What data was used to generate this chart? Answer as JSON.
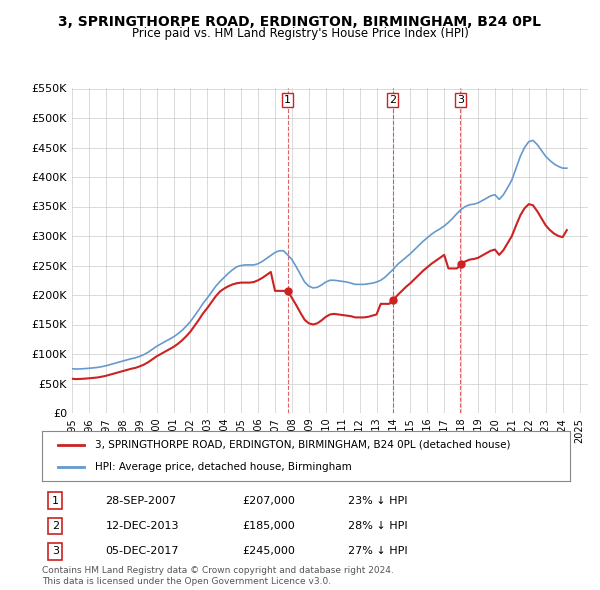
{
  "title": "3, SPRINGTHORPE ROAD, ERDINGTON, BIRMINGHAM, B24 0PL",
  "subtitle": "Price paid vs. HM Land Registry's House Price Index (HPI)",
  "ylabel": "",
  "background_color": "#ffffff",
  "plot_bg_color": "#ffffff",
  "grid_color": "#cccccc",
  "line_color_hpi": "#6699cc",
  "line_color_property": "#cc2222",
  "ylim": [
    0,
    550000
  ],
  "yticks": [
    0,
    50000,
    100000,
    150000,
    200000,
    250000,
    300000,
    350000,
    400000,
    450000,
    500000,
    550000
  ],
  "ytick_labels": [
    "£0",
    "£50K",
    "£100K",
    "£150K",
    "£200K",
    "£250K",
    "£300K",
    "£350K",
    "£400K",
    "£450K",
    "£500K",
    "£550K"
  ],
  "transactions": [
    {
      "num": 1,
      "date_label": "28-SEP-2007",
      "year": 2007.75,
      "price": 207000,
      "pct": "23%",
      "dir": "↓"
    },
    {
      "num": 2,
      "date_label": "12-DEC-2013",
      "year": 2013.95,
      "price": 185000,
      "pct": "28%",
      "dir": "↓"
    },
    {
      "num": 3,
      "date_label": "05-DEC-2017",
      "year": 2017.95,
      "price": 245000,
      "pct": "27%",
      "dir": "↓"
    }
  ],
  "legend_property": "3, SPRINGTHORPE ROAD, ERDINGTON, BIRMINGHAM, B24 0PL (detached house)",
  "legend_hpi": "HPI: Average price, detached house, Birmingham",
  "footnote": "Contains HM Land Registry data © Crown copyright and database right 2024.\nThis data is licensed under the Open Government Licence v3.0.",
  "hpi_data": {
    "years": [
      1995.0,
      1995.25,
      1995.5,
      1995.75,
      1996.0,
      1996.25,
      1996.5,
      1996.75,
      1997.0,
      1997.25,
      1997.5,
      1997.75,
      1998.0,
      1998.25,
      1998.5,
      1998.75,
      1999.0,
      1999.25,
      1999.5,
      1999.75,
      2000.0,
      2000.25,
      2000.5,
      2000.75,
      2001.0,
      2001.25,
      2001.5,
      2001.75,
      2002.0,
      2002.25,
      2002.5,
      2002.75,
      2003.0,
      2003.25,
      2003.5,
      2003.75,
      2004.0,
      2004.25,
      2004.5,
      2004.75,
      2005.0,
      2005.25,
      2005.5,
      2005.75,
      2006.0,
      2006.25,
      2006.5,
      2006.75,
      2007.0,
      2007.25,
      2007.5,
      2007.75,
      2008.0,
      2008.25,
      2008.5,
      2008.75,
      2009.0,
      2009.25,
      2009.5,
      2009.75,
      2010.0,
      2010.25,
      2010.5,
      2010.75,
      2011.0,
      2011.25,
      2011.5,
      2011.75,
      2012.0,
      2012.25,
      2012.5,
      2012.75,
      2013.0,
      2013.25,
      2013.5,
      2013.75,
      2014.0,
      2014.25,
      2014.5,
      2014.75,
      2015.0,
      2015.25,
      2015.5,
      2015.75,
      2016.0,
      2016.25,
      2016.5,
      2016.75,
      2017.0,
      2017.25,
      2017.5,
      2017.75,
      2018.0,
      2018.25,
      2018.5,
      2018.75,
      2019.0,
      2019.25,
      2019.5,
      2019.75,
      2020.0,
      2020.25,
      2020.5,
      2020.75,
      2021.0,
      2021.25,
      2021.5,
      2021.75,
      2022.0,
      2022.25,
      2022.5,
      2022.75,
      2023.0,
      2023.25,
      2023.5,
      2023.75,
      2024.0,
      2024.25
    ],
    "values": [
      75000,
      74500,
      74800,
      75200,
      75800,
      76500,
      77200,
      78500,
      80000,
      82000,
      84000,
      86000,
      88000,
      90000,
      92000,
      93500,
      96000,
      99000,
      103000,
      108000,
      113000,
      117000,
      121000,
      125000,
      129000,
      134000,
      140000,
      147000,
      155000,
      165000,
      175000,
      186000,
      195000,
      205000,
      215000,
      223000,
      230000,
      237000,
      243000,
      248000,
      250000,
      251000,
      251000,
      251000,
      253000,
      257000,
      262000,
      267000,
      272000,
      275000,
      275000,
      268000,
      260000,
      248000,
      235000,
      222000,
      215000,
      212000,
      213000,
      217000,
      222000,
      225000,
      225000,
      224000,
      223000,
      222000,
      220000,
      218000,
      218000,
      218000,
      219000,
      220000,
      222000,
      225000,
      230000,
      237000,
      244000,
      252000,
      258000,
      264000,
      270000,
      277000,
      284000,
      291000,
      297000,
      303000,
      308000,
      312000,
      317000,
      323000,
      330000,
      338000,
      345000,
      350000,
      353000,
      354000,
      356000,
      360000,
      364000,
      368000,
      370000,
      362000,
      370000,
      382000,
      395000,
      415000,
      435000,
      450000,
      460000,
      462000,
      455000,
      445000,
      435000,
      428000,
      422000,
      418000,
      415000,
      415000
    ]
  },
  "property_data": {
    "years": [
      1995.0,
      1995.25,
      1995.5,
      1995.75,
      1996.0,
      1996.25,
      1996.5,
      1996.75,
      1997.0,
      1997.25,
      1997.5,
      1997.75,
      1998.0,
      1998.25,
      1998.5,
      1998.75,
      1999.0,
      1999.25,
      1999.5,
      1999.75,
      2000.0,
      2000.25,
      2000.5,
      2000.75,
      2001.0,
      2001.25,
      2001.5,
      2001.75,
      2002.0,
      2002.25,
      2002.5,
      2002.75,
      2003.0,
      2003.25,
      2003.5,
      2003.75,
      2004.0,
      2004.25,
      2004.5,
      2004.75,
      2005.0,
      2005.25,
      2005.5,
      2005.75,
      2006.0,
      2006.25,
      2006.5,
      2006.75,
      2007.0,
      2007.25,
      2007.5,
      2007.75,
      2008.0,
      2008.25,
      2008.5,
      2008.75,
      2009.0,
      2009.25,
      2009.5,
      2009.75,
      2010.0,
      2010.25,
      2010.5,
      2010.75,
      2011.0,
      2011.25,
      2011.5,
      2011.75,
      2012.0,
      2012.25,
      2012.5,
      2012.75,
      2013.0,
      2013.25,
      2013.5,
      2013.75,
      2014.0,
      2014.25,
      2014.5,
      2014.75,
      2015.0,
      2015.25,
      2015.5,
      2015.75,
      2016.0,
      2016.25,
      2016.5,
      2016.75,
      2017.0,
      2017.25,
      2017.5,
      2017.75,
      2018.0,
      2018.25,
      2018.5,
      2018.75,
      2019.0,
      2019.25,
      2019.5,
      2019.75,
      2020.0,
      2020.25,
      2020.5,
      2020.75,
      2021.0,
      2021.25,
      2021.5,
      2021.75,
      2022.0,
      2022.25,
      2022.5,
      2022.75,
      2023.0,
      2023.25,
      2023.5,
      2023.75,
      2024.0,
      2024.25
    ],
    "values": [
      58000,
      57500,
      57800,
      58200,
      58800,
      59500,
      60200,
      61500,
      63000,
      65000,
      67000,
      69000,
      71000,
      73000,
      75000,
      76500,
      79000,
      82000,
      86000,
      91000,
      96000,
      100000,
      104000,
      108000,
      112000,
      117000,
      123000,
      130000,
      138000,
      148000,
      158000,
      169000,
      178000,
      188000,
      198000,
      206000,
      211000,
      215000,
      218000,
      220000,
      221000,
      221000,
      221000,
      222000,
      225000,
      229000,
      234000,
      239000,
      207000,
      207000,
      207000,
      207000,
      195000,
      183000,
      170000,
      158000,
      152000,
      150000,
      152000,
      157000,
      163000,
      167000,
      168000,
      167000,
      166000,
      165000,
      164000,
      162000,
      162000,
      162000,
      163000,
      165000,
      167000,
      185000,
      185000,
      185000,
      192000,
      200000,
      207000,
      214000,
      220000,
      227000,
      234000,
      241000,
      247000,
      253000,
      258000,
      263000,
      268000,
      245000,
      245000,
      245000,
      252000,
      257000,
      260000,
      261000,
      263000,
      267000,
      271000,
      275000,
      277000,
      268000,
      276000,
      288000,
      300000,
      318000,
      335000,
      347000,
      354000,
      352000,
      342000,
      330000,
      318000,
      310000,
      304000,
      300000,
      298000,
      310000
    ]
  }
}
